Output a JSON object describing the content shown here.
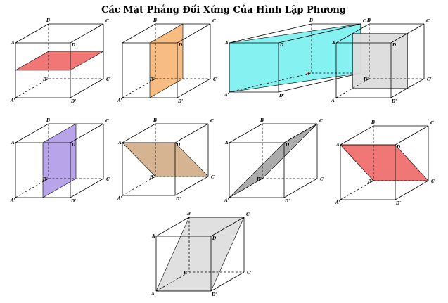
{
  "title": "Các Mặt Phẳng Đối Xứng Của Hình Lập Phương",
  "vertices": {
    "A": "A",
    "B": "B",
    "C": "C",
    "D": "D",
    "A1": "A'",
    "B1": "B'",
    "C1": "C'",
    "D1": "D'"
  },
  "colors": {
    "red": "#f07070",
    "orange": "#f5b87a",
    "cyan": "#80f0f0",
    "gray": "#dcdcdc",
    "purple": "#b4a0e8",
    "tan": "#d4b08c",
    "gray_diag": "#a8a8a8",
    "red_diag": "#f07070",
    "light_gray": "#dedede"
  },
  "cubes": [
    {
      "id": "cube-1",
      "plane": "horizontal-mid",
      "color": "red",
      "labels": [
        "A",
        "B",
        "C",
        "D",
        "A1",
        "B1",
        "C1",
        "D1"
      ]
    },
    {
      "id": "cube-2",
      "plane": "vertical-mid-depth",
      "color": "orange",
      "labels": [
        "B",
        "C",
        "D",
        "A1",
        "B1",
        "C1",
        "D1"
      ]
    },
    {
      "id": "cube-3",
      "plane": "diagonal-ABC'D'",
      "color": "cyan",
      "labels": [
        "A",
        "B",
        "C",
        "D",
        "A1",
        "B1",
        "C1",
        "D1"
      ]
    },
    {
      "id": "cube-4",
      "plane": "vertical-mid-width",
      "color": "gray",
      "labels": [
        "A",
        "B",
        "C",
        "D",
        "A1",
        "B1",
        "C1",
        "D1"
      ]
    },
    {
      "id": "cube-5",
      "plane": "vertical-mid-front",
      "color": "purple",
      "labels": [
        "A",
        "B",
        "C",
        "D",
        "A1",
        "B1",
        "C1",
        "D1"
      ]
    },
    {
      "id": "cube-6",
      "plane": "diagonal-ADC'B'",
      "color": "tan",
      "labels": [
        "A",
        "B",
        "C",
        "D",
        "A1",
        "B1",
        "C1",
        "D1"
      ]
    },
    {
      "id": "cube-7",
      "plane": "diagonal-A'B'CD",
      "color": "gray_diag",
      "labels": [
        "A",
        "B",
        "C",
        "D",
        "A1",
        "B1",
        "C1",
        "D1"
      ]
    },
    {
      "id": "cube-8",
      "plane": "diagonal-ADC'B'",
      "color": "red_diag",
      "labels": [
        "A",
        "B",
        "C",
        "D",
        "A1",
        "B1",
        "C1",
        "D1"
      ]
    },
    {
      "id": "cube-9",
      "plane": "diagonal-BCD'A'",
      "color": "light_gray",
      "labels": [
        "A",
        "B",
        "C",
        "D",
        "A1",
        "B1",
        "C1",
        "D1"
      ]
    }
  ]
}
